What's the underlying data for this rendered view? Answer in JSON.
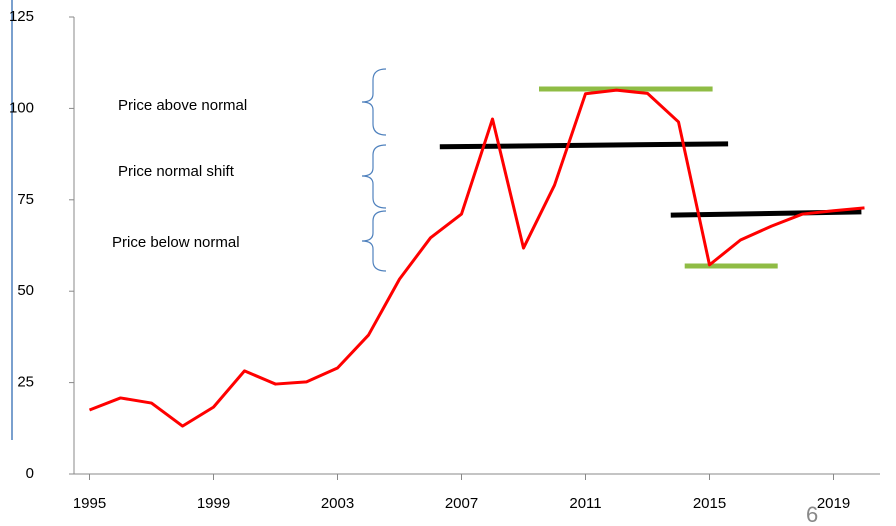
{
  "chart_data": {
    "type": "line",
    "x": [
      1995,
      1996,
      1997,
      1998,
      1999,
      2000,
      2001,
      2002,
      2003,
      2004,
      2005,
      2006,
      2007,
      2008,
      2009,
      2010,
      2011,
      2012,
      2013,
      2014,
      2015,
      2016,
      2017,
      2018,
      2019,
      2020
    ],
    "series": [
      {
        "color": "#ff0000",
        "values": [
          17.5,
          20.8,
          19.4,
          13.1,
          18.3,
          28.2,
          24.6,
          25.2,
          29.0,
          38.0,
          53.3,
          64.6,
          71.1,
          97.1,
          61.8,
          79.0,
          104.0,
          105.0,
          104.1,
          96.3,
          57.2,
          64.0,
          67.8,
          71.1,
          72.0,
          72.8
        ]
      }
    ],
    "xlim": [
      1994.5,
      2020.5
    ],
    "xticks": [
      1995,
      1999,
      2003,
      2007,
      2011,
      2015,
      2019
    ],
    "ylim": [
      0,
      125
    ],
    "yticks": [
      0,
      25,
      50,
      75,
      100,
      125
    ],
    "levels": [
      {
        "color": "#000000",
        "x": [
          2006.3,
          2015.6
        ],
        "y": [
          89.5,
          90.3
        ]
      },
      {
        "color": "#000000",
        "x": [
          2013.75,
          2019.9
        ],
        "y": [
          70.8,
          71.7
        ]
      },
      {
        "color": "#8fbc45",
        "x": [
          2009.5,
          2015.1
        ],
        "y": [
          105.3,
          105.3
        ]
      },
      {
        "color": "#8fbc45",
        "x": [
          2014.2,
          2017.2
        ],
        "y": [
          56.9,
          56.9
        ]
      }
    ],
    "annotations": [
      "Price above normal",
      "Price normal shift",
      "Price below normal"
    ],
    "page_number": "6"
  }
}
